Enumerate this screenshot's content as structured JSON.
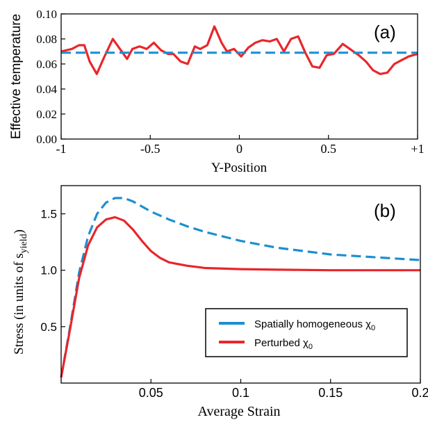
{
  "colors": {
    "red": "#e8262b",
    "blue": "#1c8fd0",
    "axis": "#000000"
  },
  "chart_data": [
    {
      "type": "line",
      "panel_label": "(a)",
      "xlabel": "Y-Position",
      "ylabel": "Effective temperature",
      "xlim": [
        -1,
        1
      ],
      "ylim": [
        0,
        0.1
      ],
      "x_ticks": [
        -1,
        -0.5,
        0,
        0.5,
        1
      ],
      "x_tick_labels": [
        "-1",
        "-0.5",
        "0",
        "0.5",
        "+1"
      ],
      "y_ticks": [
        0,
        0.02,
        0.04,
        0.06,
        0.08,
        0.1
      ],
      "y_tick_labels": [
        "0.00",
        "0.02",
        "0.04",
        "0.06",
        "0.08",
        "0.10"
      ],
      "series": [
        {
          "style": "solid",
          "color": "#e8262b",
          "x": [
            -1.0,
            -0.94,
            -0.9,
            -0.87,
            -0.84,
            -0.8,
            -0.76,
            -0.71,
            -0.67,
            -0.63,
            -0.6,
            -0.56,
            -0.52,
            -0.48,
            -0.44,
            -0.4,
            -0.37,
            -0.33,
            -0.29,
            -0.25,
            -0.22,
            -0.18,
            -0.14,
            -0.1,
            -0.07,
            -0.03,
            0.01,
            0.05,
            0.09,
            0.13,
            0.17,
            0.21,
            0.25,
            0.29,
            0.33,
            0.37,
            0.41,
            0.45,
            0.49,
            0.53,
            0.58,
            0.63,
            0.67,
            0.71,
            0.75,
            0.79,
            0.83,
            0.87,
            0.91,
            0.95,
            1.0
          ],
          "y": [
            0.07,
            0.072,
            0.075,
            0.075,
            0.062,
            0.052,
            0.065,
            0.08,
            0.072,
            0.064,
            0.072,
            0.074,
            0.072,
            0.077,
            0.071,
            0.068,
            0.068,
            0.062,
            0.06,
            0.074,
            0.072,
            0.075,
            0.09,
            0.077,
            0.07,
            0.072,
            0.066,
            0.073,
            0.077,
            0.079,
            0.078,
            0.08,
            0.07,
            0.08,
            0.082,
            0.069,
            0.058,
            0.057,
            0.067,
            0.068,
            0.076,
            0.071,
            0.067,
            0.062,
            0.055,
            0.052,
            0.053,
            0.06,
            0.063,
            0.066,
            0.068
          ]
        },
        {
          "style": "dashed",
          "color": "#1c8fd0",
          "x": [
            -1,
            1
          ],
          "y": [
            0.069,
            0.069
          ]
        }
      ]
    },
    {
      "type": "line",
      "panel_label": "(b)",
      "xlabel": "Average Strain",
      "ylabel_main": "Stress (in units of s",
      "ylabel_sub": "yield",
      "ylabel_close": ")",
      "xlim": [
        0,
        0.2
      ],
      "ylim": [
        0,
        1.75
      ],
      "x_ticks": [
        0.05,
        0.1,
        0.15,
        0.2
      ],
      "x_tick_labels": [
        "0.05",
        "0.1",
        "0.15",
        "0.2"
      ],
      "y_ticks": [
        0.5,
        1.0,
        1.5
      ],
      "y_tick_labels": [
        "0.5",
        "1.0",
        "1.5"
      ],
      "legend_position": "lower-right",
      "series": [
        {
          "name_main": "Spatially homogeneous χ",
          "name_sub": "0",
          "style": "dashed",
          "color": "#1c8fd0",
          "x": [
            0,
            0.005,
            0.01,
            0.015,
            0.02,
            0.025,
            0.03,
            0.035,
            0.04,
            0.05,
            0.06,
            0.07,
            0.08,
            0.09,
            0.1,
            0.11,
            0.12,
            0.13,
            0.14,
            0.15,
            0.16,
            0.17,
            0.18,
            0.19,
            0.2
          ],
          "y": [
            0.05,
            0.5,
            0.98,
            1.3,
            1.5,
            1.6,
            1.64,
            1.64,
            1.61,
            1.52,
            1.45,
            1.39,
            1.34,
            1.3,
            1.26,
            1.23,
            1.2,
            1.18,
            1.16,
            1.14,
            1.13,
            1.12,
            1.11,
            1.1,
            1.09
          ]
        },
        {
          "name_main": "Perturbed χ",
          "name_sub": "0",
          "style": "solid",
          "color": "#e8262b",
          "x": [
            0,
            0.005,
            0.01,
            0.015,
            0.02,
            0.025,
            0.03,
            0.035,
            0.04,
            0.045,
            0.05,
            0.055,
            0.06,
            0.07,
            0.08,
            0.1,
            0.12,
            0.15,
            0.18,
            0.2
          ],
          "y": [
            0.05,
            0.48,
            0.93,
            1.22,
            1.38,
            1.45,
            1.47,
            1.44,
            1.36,
            1.26,
            1.17,
            1.11,
            1.07,
            1.04,
            1.02,
            1.01,
            1.005,
            1.0,
            1.0,
            1.0
          ]
        }
      ]
    }
  ]
}
